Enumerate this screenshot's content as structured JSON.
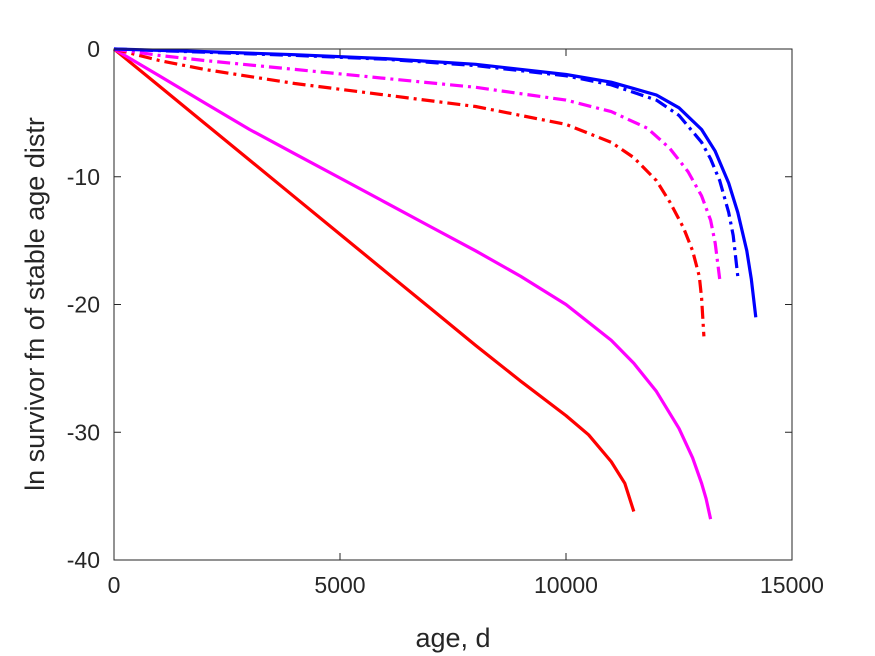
{
  "chart_data": {
    "type": "line",
    "xlabel": "age, d",
    "ylabel": "ln survivor fn of stable age distr",
    "xlim": [
      0,
      15000
    ],
    "ylim": [
      -40,
      0
    ],
    "xticks": [
      0,
      5000,
      10000,
      15000
    ],
    "yticks": [
      0,
      -10,
      -20,
      -30,
      -40
    ],
    "xtick_labels": [
      "0",
      "5000",
      "10000",
      "15000"
    ],
    "ytick_labels": [
      "0",
      "-10",
      "-20",
      "-30",
      "-40"
    ],
    "grid": false,
    "legend": null,
    "series": [
      {
        "color": "#ff0000",
        "style": "solid",
        "x": [
          0,
          1000,
          2000,
          3000,
          4000,
          5000,
          6000,
          7000,
          8000,
          9000,
          10000,
          10500,
          11000,
          11300,
          11500
        ],
        "y": [
          0,
          -2.9,
          -5.8,
          -8.7,
          -11.6,
          -14.5,
          -17.4,
          -20.3,
          -23.2,
          -26.0,
          -28.7,
          -30.2,
          -32.3,
          -34.0,
          -36.2
        ]
      },
      {
        "color": "#ff00ff",
        "style": "solid",
        "x": [
          0,
          1000,
          2000,
          3000,
          4000,
          5000,
          6000,
          7000,
          8000,
          9000,
          10000,
          11000,
          11500,
          12000,
          12500,
          12800,
          13000,
          13100,
          13200
        ],
        "y": [
          0,
          -2.1,
          -4.2,
          -6.3,
          -8.2,
          -10.1,
          -12.0,
          -13.9,
          -15.8,
          -17.8,
          -20.0,
          -22.8,
          -24.6,
          -26.8,
          -29.7,
          -32.0,
          -34.0,
          -35.2,
          -36.8
        ]
      },
      {
        "color": "#0000ff",
        "style": "solid",
        "x": [
          0,
          2000,
          4000,
          6000,
          8000,
          10000,
          11000,
          12000,
          12500,
          13000,
          13300,
          13600,
          13800,
          14000,
          14100,
          14200
        ],
        "y": [
          0,
          -0.2,
          -0.45,
          -0.75,
          -1.2,
          -2.0,
          -2.6,
          -3.6,
          -4.6,
          -6.3,
          -8.0,
          -10.5,
          -12.8,
          -15.8,
          -18.0,
          -21.0
        ]
      },
      {
        "color": "#ff0000",
        "style": "dashdot",
        "x": [
          0,
          1000,
          2000,
          4000,
          6000,
          8000,
          10000,
          11000,
          11500,
          12000,
          12300,
          12600,
          12800,
          12950,
          13000,
          13050
        ],
        "y": [
          0,
          -0.9,
          -1.6,
          -2.7,
          -3.6,
          -4.5,
          -5.9,
          -7.3,
          -8.5,
          -10.3,
          -12.0,
          -14.0,
          -15.8,
          -17.8,
          -19.5,
          -22.5
        ]
      },
      {
        "color": "#ff00ff",
        "style": "dashdot",
        "x": [
          0,
          1000,
          2000,
          4000,
          6000,
          8000,
          10000,
          11000,
          11800,
          12300,
          12700,
          13000,
          13200,
          13300,
          13400
        ],
        "y": [
          0,
          -0.5,
          -0.9,
          -1.6,
          -2.3,
          -3.0,
          -4.0,
          -4.9,
          -6.2,
          -7.8,
          -9.6,
          -11.5,
          -13.4,
          -15.2,
          -18.0
        ]
      },
      {
        "color": "#0000ff",
        "style": "dashdot",
        "x": [
          0,
          2000,
          4000,
          6000,
          8000,
          10000,
          11000,
          12000,
          12500,
          13000,
          13200,
          13400,
          13600,
          13700,
          13800
        ],
        "y": [
          0,
          -0.25,
          -0.5,
          -0.8,
          -1.3,
          -2.1,
          -2.8,
          -4.0,
          -5.2,
          -7.3,
          -8.6,
          -10.3,
          -12.8,
          -14.6,
          -17.8
        ]
      }
    ]
  }
}
